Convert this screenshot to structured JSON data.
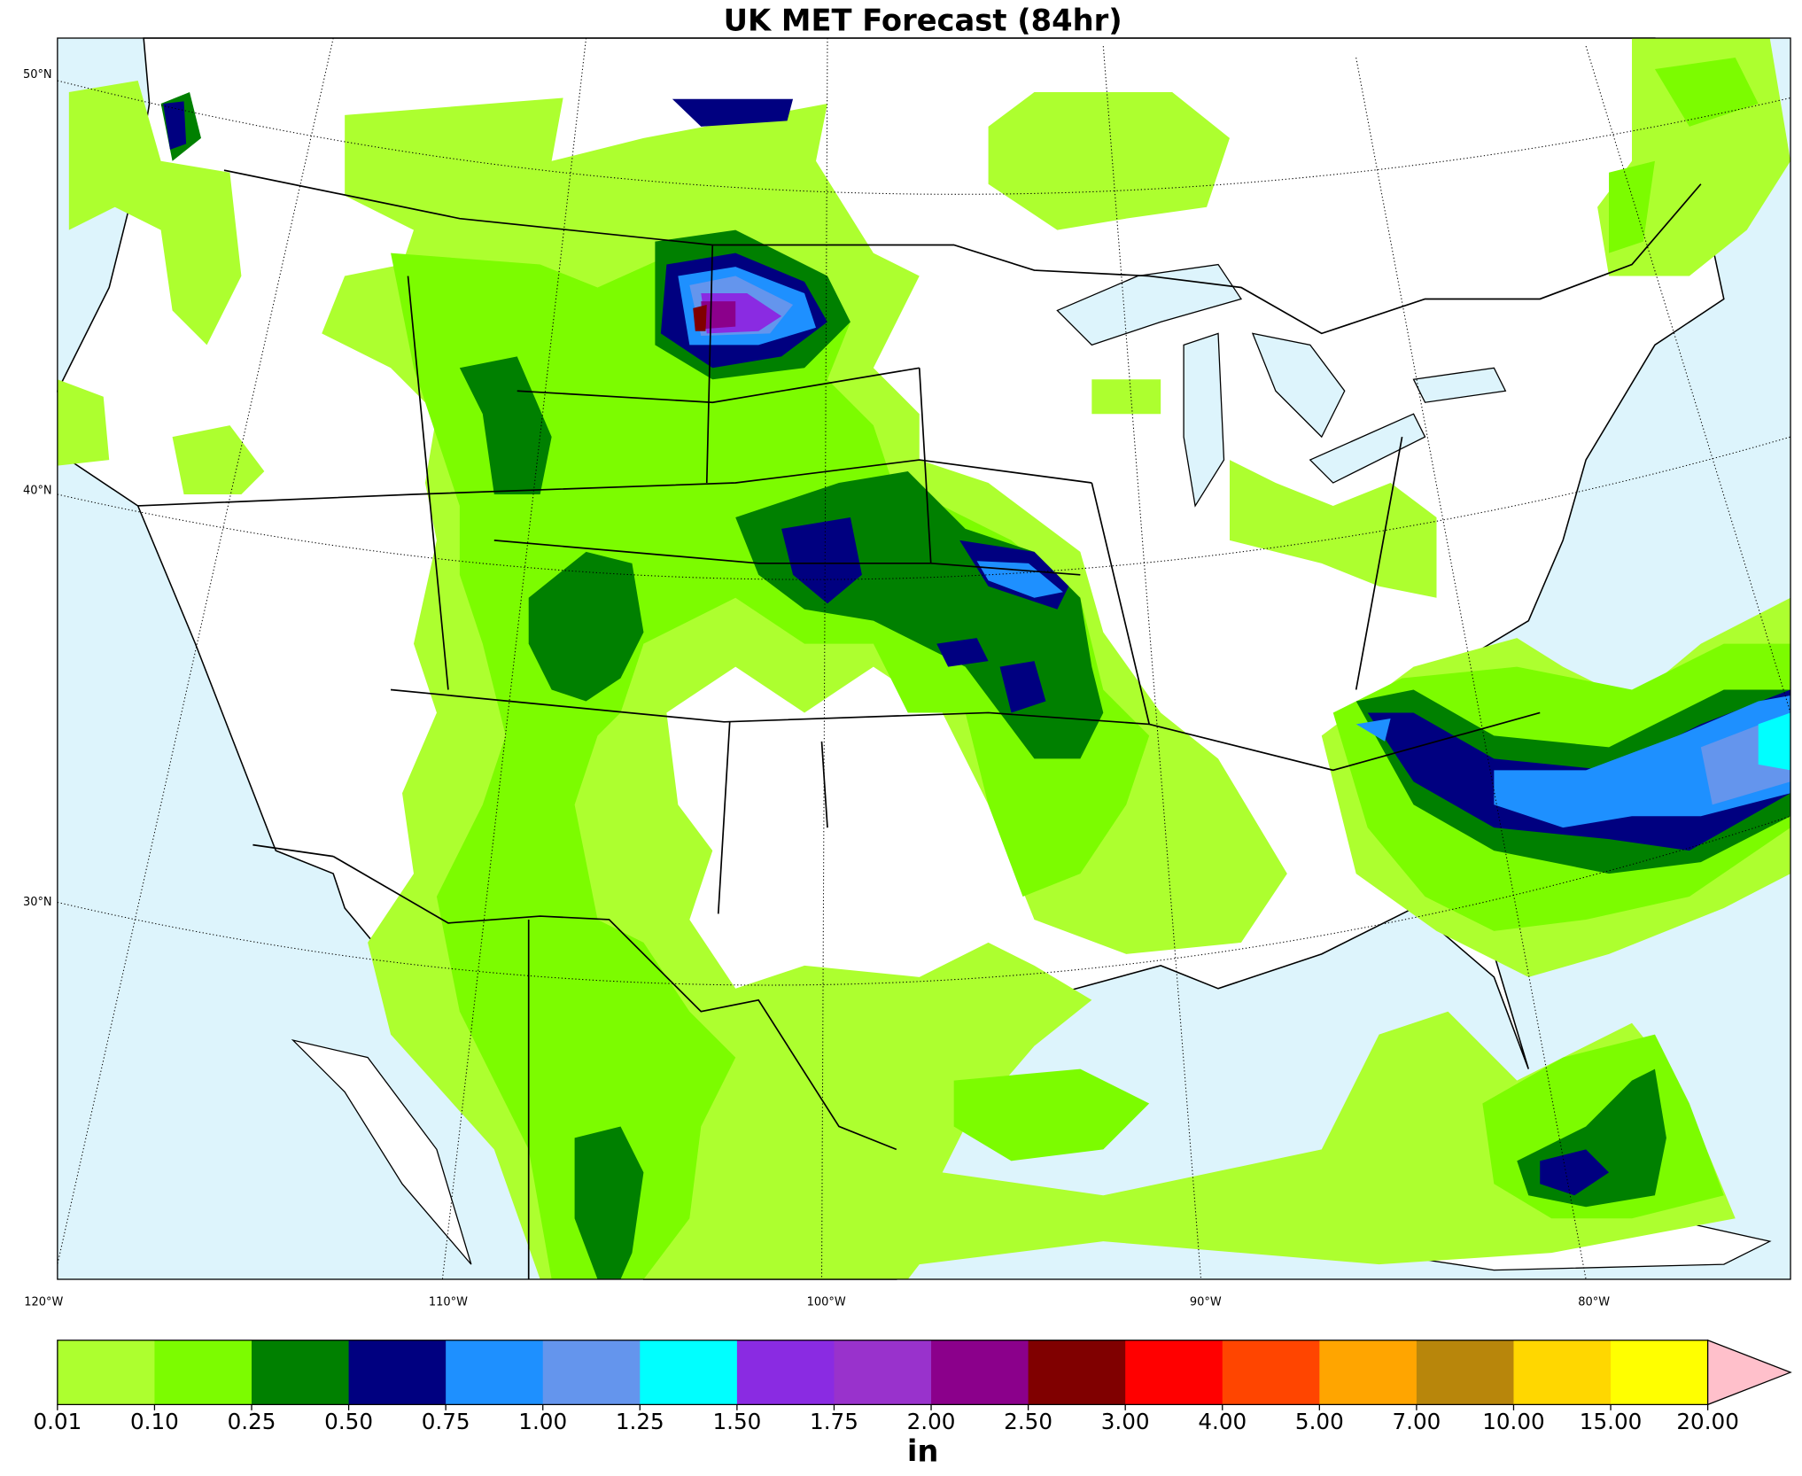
{
  "title": "UK MET Forecast (84hr)",
  "map": {
    "lat_labels": [
      "50°N",
      "40°N",
      "30°N"
    ],
    "lon_labels": [
      "120°W",
      "110°W",
      "100°W",
      "90°W",
      "80°W"
    ]
  },
  "colorbar": {
    "levels": [
      {
        "value": 0.01,
        "label": "0.01"
      },
      {
        "value": 0.1,
        "label": "0.10"
      },
      {
        "value": 0.25,
        "label": "0.25"
      },
      {
        "value": 0.5,
        "label": "0.50"
      },
      {
        "value": 0.75,
        "label": "0.75"
      },
      {
        "value": 1,
        "label": "1.00"
      },
      {
        "value": 1.25,
        "label": "1.25"
      },
      {
        "value": 1.5,
        "label": "1.50"
      },
      {
        "value": 1.75,
        "label": "1.75"
      },
      {
        "value": 2,
        "label": "2.00"
      },
      {
        "value": 2.5,
        "label": "2.50"
      },
      {
        "value": 3,
        "label": "3.00"
      },
      {
        "value": 4,
        "label": "4.00"
      },
      {
        "value": 5,
        "label": "5.00"
      },
      {
        "value": 7,
        "label": "7.00"
      },
      {
        "value": 10,
        "label": "10.00"
      },
      {
        "value": 15,
        "label": "15.00"
      },
      {
        "value": 20,
        "label": "20.00"
      }
    ],
    "colors": [
      "#adff2f",
      "#7cfc00",
      "#008000",
      "#000080",
      "#1e90ff",
      "#6495ed",
      "#00ffff",
      "#8a2be2",
      "#9932cc",
      "#8b008b",
      "#800000",
      "#ff0000",
      "#ff4500",
      "#ffa500",
      "#b8860b",
      "#ffd700",
      "#ffff00"
    ],
    "extend_color": "#ffc0cb",
    "unit": "in"
  }
}
